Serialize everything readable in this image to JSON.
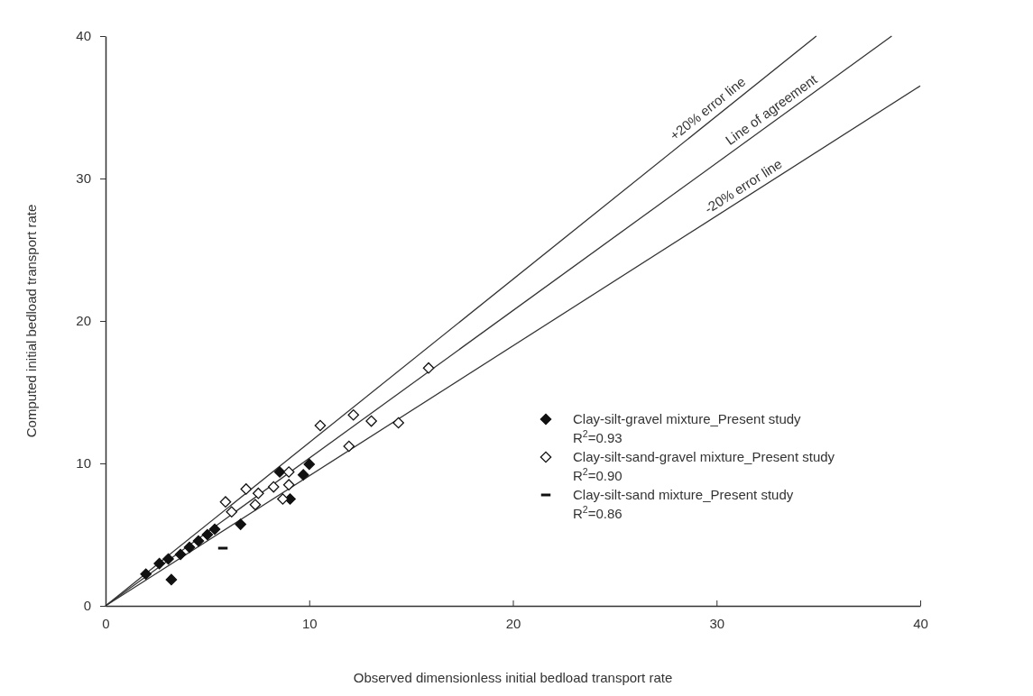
{
  "chart_data": {
    "type": "scatter",
    "xlabel": "Observed dimensionless initial bedload transport rate",
    "ylabel": "Computed initial bedload transport rate",
    "xlim": [
      0,
      40
    ],
    "ylim": [
      0,
      40
    ],
    "xticks": [
      0,
      10,
      20,
      30,
      40
    ],
    "yticks": [
      0,
      10,
      20,
      30,
      40
    ],
    "grid": false,
    "legend": "right",
    "series": [
      {
        "type": "line",
        "color": "#333333",
        "marker": "none",
        "x": [
          0,
          34.9
        ],
        "values": [
          0,
          40
        ]
      },
      {
        "type": "line",
        "color": "#333333",
        "marker": "none",
        "x": [
          0,
          38.6
        ],
        "values": [
          0,
          40
        ]
      },
      {
        "type": "line",
        "color": "#333333",
        "marker": "none",
        "x": [
          0,
          40
        ],
        "values": [
          0,
          36.5
        ]
      },
      {
        "name": "Clay-silt-gravel mixture_Present study\nR$^{2}$=0.93",
        "color": "#111111",
        "marker": "diamond",
        "x": [
          1.98,
          3.23,
          2.64,
          3.08,
          3.68,
          4.12,
          4.56,
          5.0,
          5.36,
          6.63,
          8.55,
          9.06,
          9.71,
          10.0
        ],
        "values": [
          2.23,
          1.84,
          2.97,
          3.29,
          3.61,
          4.11,
          4.56,
          5.0,
          5.38,
          5.72,
          9.4,
          7.5,
          9.2,
          9.94
        ]
      },
      {
        "name": "Clay-silt-sand-gravel mixture_Present study\nR$^{2}$=0.90",
        "color": "#111111",
        "marker": "diamond-open",
        "x": [
          10.54,
          5.89,
          6.9,
          6.19,
          7.5,
          8.25,
          9.0,
          8.7,
          7.35,
          9.0,
          15.86,
          12.17,
          13.05,
          14.38,
          11.95
        ],
        "values": [
          12.66,
          7.3,
          8.2,
          6.6,
          7.9,
          8.35,
          9.4,
          7.5,
          7.1,
          8.5,
          16.7,
          13.4,
          12.97,
          12.85,
          11.2
        ]
      },
      {
        "name": "Clay-silt-sand mixture_Present study\nR$^{2}$=0.86",
        "color": "#111111",
        "x": [
          5.76
        ],
        "values": [
          4.05
        ]
      }
    ],
    "annotations": [
      {
        "text": "+20% error line",
        "x": 29.9,
        "y": 34.3
      },
      {
        "text": "Line of agreement",
        "x": 33.0,
        "y": 34.2
      },
      {
        "text": "-20% error line",
        "x": 31.6,
        "y": 28.8
      }
    ]
  }
}
